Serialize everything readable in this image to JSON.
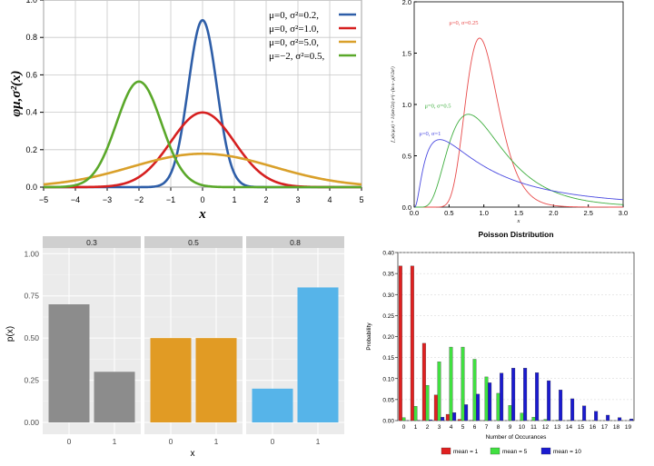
{
  "chart_data": [
    {
      "id": "normal",
      "type": "line",
      "ylabel": "φμ,σ²(x)",
      "xlabel": "x",
      "xlim": [
        -5,
        5
      ],
      "ylim": [
        0,
        1.0
      ],
      "xticks": [
        "−5",
        "−4",
        "−3",
        "−2",
        "−1",
        "0",
        "1",
        "2",
        "3",
        "4",
        "5"
      ],
      "yticks": [
        "0.0",
        "0.2",
        "0.4",
        "0.6",
        "0.8",
        "1.0"
      ],
      "grid": true,
      "legend_position": "top-right",
      "series": [
        {
          "name": "μ=0,   σ²=0.2,",
          "mu": 0,
          "var": 0.2,
          "color": "#2e5ea8"
        },
        {
          "name": "μ=0,   σ²=1.0,",
          "mu": 0,
          "var": 1.0,
          "color": "#d62020"
        },
        {
          "name": "μ=0,   σ²=5.0,",
          "mu": 0,
          "var": 5.0,
          "color": "#d9a02a"
        },
        {
          "name": "μ=−2,  σ²=0.5,",
          "mu": -2,
          "var": 0.5,
          "color": "#5aa82a"
        }
      ]
    },
    {
      "id": "lognormal",
      "type": "line",
      "ylabel": "f_x(x;μ,σ) = 1/(xσ√2π) e^(−(ln x−μ)²/2σ²)",
      "xlabel": "x",
      "xlim": [
        0,
        3.0
      ],
      "ylim": [
        0,
        2.0
      ],
      "xticks": [
        "0.0",
        "0.5",
        "1.0",
        "1.5",
        "2.0",
        "2.5",
        "3.0"
      ],
      "yticks": [
        "0.0",
        "0.5",
        "1.0",
        "1.5",
        "2.0"
      ],
      "series": [
        {
          "name": "μ=0, σ=0.25",
          "mu": 0,
          "sigma": 0.25,
          "color": "#e84a4a"
        },
        {
          "name": "μ=0, σ=0.5",
          "mu": 0,
          "sigma": 0.5,
          "color": "#3fae3f"
        },
        {
          "name": "μ=0, σ=1",
          "mu": 0,
          "sigma": 1,
          "color": "#4a4ae0"
        }
      ]
    },
    {
      "id": "bernoulli",
      "type": "bar",
      "facets": [
        {
          "label": "0.3",
          "color": "#8c8c8c",
          "categories": [
            "0",
            "1"
          ],
          "values": [
            0.7,
            0.3
          ]
        },
        {
          "label": "0.5",
          "color": "#e19b24",
          "categories": [
            "0",
            "1"
          ],
          "values": [
            0.5,
            0.5
          ]
        },
        {
          "label": "0.8",
          "color": "#56b4e9",
          "categories": [
            "0",
            "1"
          ],
          "values": [
            0.2,
            0.8
          ]
        }
      ],
      "xlabel": "x",
      "ylabel": "p(x)",
      "ylim": [
        0,
        1.05
      ],
      "yticks": [
        "0.00",
        "0.25",
        "0.50",
        "0.75",
        "1.00"
      ]
    },
    {
      "id": "poisson",
      "type": "bar",
      "title": "Poisson Distribution",
      "xlabel": "Number of Occurances",
      "ylabel": "Probability",
      "ylim": [
        0,
        0.4
      ],
      "yticks": [
        "0.00",
        "0.05",
        "0.10",
        "0.15",
        "0.20",
        "0.25",
        "0.30",
        "0.35",
        "0.40"
      ],
      "categories": [
        "0",
        "1",
        "2",
        "3",
        "4",
        "5",
        "6",
        "7",
        "8",
        "9",
        "10",
        "11",
        "12",
        "13",
        "14",
        "15",
        "16",
        "17",
        "18",
        "19"
      ],
      "legend_position": "bottom",
      "series": [
        {
          "name": "mean = 1",
          "color": "#e02020",
          "values": [
            0.368,
            0.368,
            0.184,
            0.061,
            0.015,
            0.003,
            0.0005,
            0.0001,
            0,
            0,
            0,
            0,
            0,
            0,
            0,
            0,
            0,
            0,
            0,
            0
          ]
        },
        {
          "name": "mean = 5",
          "color": "#40e040",
          "values": [
            0.007,
            0.034,
            0.084,
            0.14,
            0.175,
            0.175,
            0.146,
            0.104,
            0.065,
            0.036,
            0.018,
            0.008,
            0.003,
            0.001,
            0.0005,
            0.0002,
            0,
            0,
            0,
            0
          ]
        },
        {
          "name": "mean = 10",
          "color": "#1a1ad0",
          "values": [
            5e-05,
            0.0005,
            0.002,
            0.008,
            0.019,
            0.038,
            0.063,
            0.09,
            0.113,
            0.125,
            0.125,
            0.114,
            0.095,
            0.073,
            0.052,
            0.035,
            0.022,
            0.013,
            0.007,
            0.004
          ]
        }
      ]
    }
  ]
}
